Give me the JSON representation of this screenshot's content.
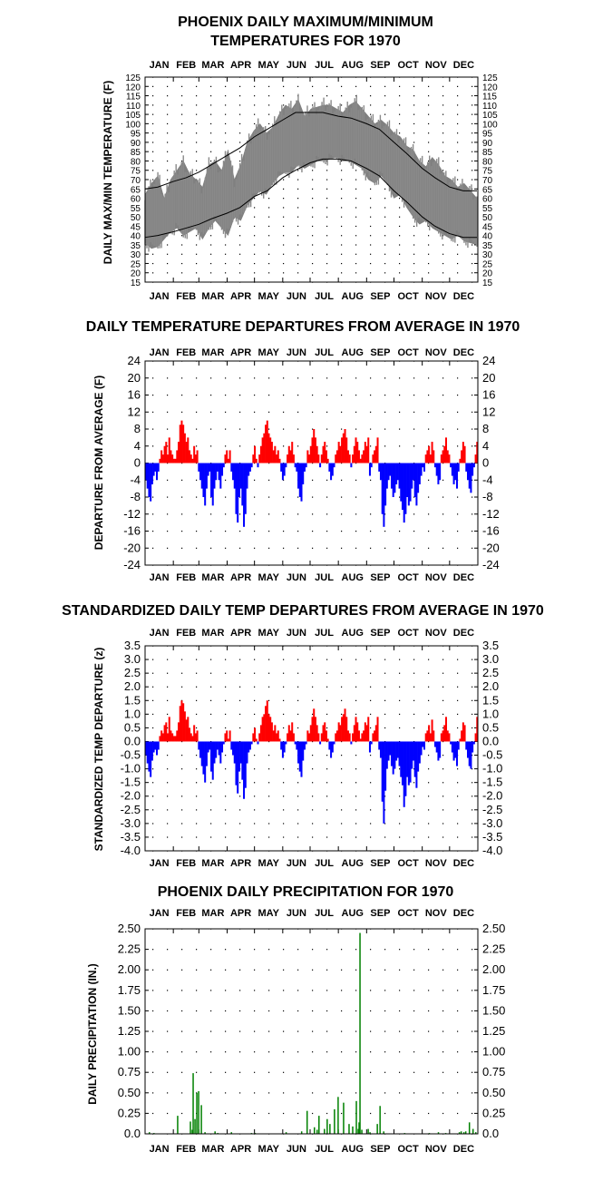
{
  "chart_data": [
    {
      "type": "area",
      "title": [
        "PHOENIX DAILY MAXIMUM/MINIMUM",
        "TEMPERATURES FOR 1970"
      ],
      "ylabel": "DAILY MAX/MIN TEMPERATURE (F)",
      "ylim": [
        15,
        125
      ],
      "yticks": [
        15,
        20,
        25,
        30,
        35,
        40,
        45,
        50,
        55,
        60,
        65,
        70,
        75,
        80,
        85,
        90,
        95,
        100,
        105,
        110,
        115,
        120,
        125
      ],
      "months": [
        "JAN",
        "FEB",
        "MAR",
        "APR",
        "MAY",
        "JUN",
        "JUL",
        "AUG",
        "SEP",
        "OCT",
        "NOV",
        "DEC"
      ],
      "grid": true,
      "series": [
        {
          "name": "",
          "kind": "normal-max",
          "color": "#000000",
          "x": [
            1,
            15,
            32,
            46,
            60,
            74,
            91,
            105,
            121,
            135,
            152,
            166,
            182,
            196,
            213,
            227,
            244,
            258,
            274,
            288,
            305,
            319,
            335,
            350,
            365
          ],
          "values": [
            65,
            66,
            69,
            71,
            74,
            78,
            83,
            87,
            93,
            97,
            102,
            106,
            106,
            106,
            104,
            103,
            100,
            97,
            90,
            84,
            76,
            71,
            66,
            64,
            64
          ]
        },
        {
          "name": "",
          "kind": "normal-min",
          "color": "#000000",
          "x": [
            1,
            15,
            32,
            46,
            60,
            74,
            91,
            105,
            121,
            135,
            152,
            166,
            182,
            196,
            213,
            227,
            244,
            258,
            274,
            288,
            305,
            319,
            335,
            350,
            365
          ],
          "values": [
            39,
            40,
            42,
            44,
            46,
            49,
            52,
            55,
            61,
            64,
            71,
            75,
            79,
            81,
            81,
            80,
            76,
            72,
            64,
            58,
            50,
            45,
            41,
            39,
            39
          ]
        },
        {
          "name": "",
          "kind": "daily-max",
          "color": "#808080",
          "x": [
            1,
            8,
            15,
            22,
            29,
            36,
            43,
            50,
            57,
            64,
            71,
            78,
            85,
            92,
            99,
            106,
            113,
            120,
            127,
            134,
            141,
            148,
            155,
            162,
            169,
            176,
            183,
            190,
            197,
            204,
            211,
            218,
            225,
            232,
            239,
            246,
            253,
            260,
            267,
            274,
            281,
            288,
            295,
            302,
            309,
            316,
            323,
            330,
            337,
            344,
            351,
            358,
            365
          ],
          "values": [
            62,
            68,
            72,
            60,
            70,
            75,
            80,
            73,
            70,
            66,
            78,
            80,
            75,
            86,
            70,
            78,
            90,
            96,
            100,
            95,
            98,
            105,
            110,
            108,
            113,
            104,
            108,
            109,
            110,
            110,
            108,
            106,
            110,
            112,
            108,
            104,
            100,
            102,
            99,
            95,
            93,
            88,
            86,
            80,
            77,
            82,
            78,
            72,
            70,
            66,
            68,
            64,
            60
          ]
        },
        {
          "name": "",
          "kind": "daily-min",
          "color": "#808080",
          "x": [
            1,
            8,
            15,
            22,
            29,
            36,
            43,
            50,
            57,
            64,
            71,
            78,
            85,
            92,
            99,
            106,
            113,
            120,
            127,
            134,
            141,
            148,
            155,
            162,
            169,
            176,
            183,
            190,
            197,
            204,
            211,
            218,
            225,
            232,
            239,
            246,
            253,
            260,
            267,
            274,
            281,
            288,
            295,
            302,
            309,
            316,
            323,
            330,
            337,
            344,
            351,
            358,
            365
          ],
          "values": [
            36,
            33,
            34,
            38,
            42,
            44,
            40,
            42,
            44,
            38,
            44,
            48,
            44,
            40,
            50,
            48,
            56,
            60,
            64,
            62,
            68,
            72,
            74,
            74,
            78,
            76,
            78,
            80,
            80,
            81,
            82,
            80,
            80,
            78,
            76,
            70,
            68,
            72,
            68,
            60,
            62,
            55,
            50,
            46,
            48,
            44,
            42,
            40,
            38,
            40,
            37,
            36,
            35
          ]
        }
      ]
    },
    {
      "type": "bar",
      "title": "DAILY TEMPERATURE DEPARTURES FROM AVERAGE IN 1970",
      "ylabel": "DEPARTURE FROM AVERAGE (F)",
      "ylim": [
        -24,
        24
      ],
      "yticks": [
        24,
        20,
        16,
        12,
        8,
        4,
        0,
        -4,
        -8,
        -12,
        -16,
        -20,
        -24
      ],
      "months": [
        "JAN",
        "FEB",
        "MAR",
        "APR",
        "MAY",
        "JUN",
        "JUL",
        "AUG",
        "SEP",
        "OCT",
        "NOV",
        "DEC"
      ],
      "grid": true,
      "positive_color": "#ff0000",
      "negative_color": "#0000ff",
      "series": [
        {
          "name": "",
          "values": [
            -4,
            -6,
            -8,
            -9,
            -5,
            -3,
            -2,
            -4,
            -2,
            1,
            3,
            2,
            4,
            5,
            2,
            6,
            3,
            2,
            1,
            1,
            3,
            5,
            9,
            10,
            9,
            7,
            5,
            6,
            3,
            2,
            1,
            4,
            2,
            3,
            -2,
            -4,
            -6,
            -8,
            -10,
            -6,
            -3,
            -2,
            -8,
            -10,
            -6,
            -4,
            -2,
            -4,
            -6,
            -3,
            -1,
            2,
            3,
            1,
            3,
            -2,
            -4,
            -6,
            -12,
            -14,
            -8,
            -6,
            -10,
            -15,
            -12,
            -6,
            -3,
            -2,
            -1,
            2,
            4,
            1,
            -1,
            2,
            4,
            6,
            7,
            9,
            10,
            7,
            6,
            5,
            3,
            4,
            2,
            3,
            1,
            -2,
            -4,
            -3,
            -1,
            2,
            4,
            3,
            5,
            2,
            -1,
            -2,
            -6,
            -8,
            -9,
            -5,
            -2,
            -1,
            3,
            2,
            4,
            6,
            8,
            6,
            4,
            2,
            -1,
            2,
            4,
            5,
            3,
            1,
            -2,
            -4,
            -3,
            -1,
            2,
            3,
            5,
            4,
            6,
            7,
            8,
            6,
            3,
            2,
            -1,
            2,
            4,
            6,
            5,
            3,
            1,
            2,
            3,
            5,
            4,
            6,
            -3,
            -1,
            2,
            3,
            4,
            6,
            -2,
            -4,
            -12,
            -15,
            -10,
            -6,
            -4,
            -3,
            -6,
            -8,
            -7,
            -5,
            -4,
            -6,
            -9,
            -11,
            -14,
            -12,
            -8,
            -10,
            -9,
            -6,
            -4,
            -8,
            -10,
            -7,
            -5,
            -3,
            -1,
            -2,
            2,
            3,
            4,
            2,
            5,
            3,
            -1,
            -3,
            -5,
            -4,
            2,
            3,
            4,
            6,
            3,
            2,
            -1,
            -3,
            -5,
            -4,
            -6,
            -2,
            1,
            3,
            5,
            4,
            -2,
            -4,
            -6,
            -7,
            -3,
            -1,
            2,
            5
          ]
        }
      ]
    },
    {
      "type": "bar",
      "title": "STANDARDIZED DAILY TEMP DEPARTURES FROM AVERAGE IN 1970",
      "ylabel": "STANDARDIZED TEMP DEPARTURE (z)",
      "ylim": [
        -4.0,
        3.5
      ],
      "yticks": [
        "3.5",
        "3.0",
        "2.5",
        "2.0",
        "1.5",
        "1.0",
        "0.5",
        "0.0",
        "-0.5",
        "-1.0",
        "-1.5",
        "-2.0",
        "-2.5",
        "-3.0",
        "-3.5",
        "-4.0"
      ],
      "months": [
        "JAN",
        "FEB",
        "MAR",
        "APR",
        "MAY",
        "JUN",
        "JUL",
        "AUG",
        "SEP",
        "OCT",
        "NOV",
        "DEC"
      ],
      "grid": true,
      "positive_color": "#ff0000",
      "negative_color": "#0000ff",
      "series": [
        {
          "name": "",
          "values": [
            -0.5,
            -0.8,
            -1.1,
            -1.3,
            -0.7,
            -0.4,
            -0.3,
            -0.5,
            -0.3,
            0.2,
            0.4,
            0.3,
            0.6,
            0.7,
            0.3,
            0.9,
            0.4,
            0.3,
            0.2,
            0.2,
            0.4,
            0.7,
            1.3,
            1.5,
            1.4,
            1.1,
            0.8,
            0.9,
            0.5,
            0.3,
            0.2,
            0.6,
            0.3,
            0.4,
            -0.3,
            -0.6,
            -0.9,
            -1.2,
            -1.5,
            -0.9,
            -0.4,
            -0.3,
            -1.1,
            -1.4,
            -0.8,
            -0.6,
            -0.3,
            -0.5,
            -0.8,
            -0.4,
            -0.1,
            0.3,
            0.4,
            0.1,
            0.4,
            -0.3,
            -0.5,
            -0.8,
            -1.6,
            -1.9,
            -1.1,
            -0.8,
            -1.4,
            -2.1,
            -1.7,
            -0.8,
            -0.4,
            -0.3,
            -0.1,
            0.3,
            0.5,
            0.1,
            -0.1,
            0.3,
            0.6,
            0.9,
            1.0,
            1.3,
            1.5,
            1.0,
            0.9,
            0.7,
            0.4,
            0.6,
            0.3,
            0.4,
            0.1,
            -0.3,
            -0.6,
            -0.4,
            -0.1,
            0.3,
            0.6,
            0.4,
            0.7,
            0.3,
            -0.1,
            -0.3,
            -0.8,
            -1.1,
            -1.3,
            -0.7,
            -0.3,
            -0.1,
            0.4,
            0.3,
            0.6,
            0.9,
            1.2,
            0.9,
            0.6,
            0.3,
            -0.1,
            0.3,
            0.6,
            0.7,
            0.4,
            0.1,
            -0.3,
            -0.6,
            -0.4,
            -0.1,
            0.3,
            0.4,
            0.7,
            0.6,
            0.9,
            1.0,
            1.2,
            0.9,
            0.4,
            0.3,
            -0.1,
            0.3,
            0.6,
            0.9,
            0.7,
            0.4,
            0.1,
            0.3,
            0.4,
            0.7,
            0.6,
            0.9,
            -0.4,
            -0.1,
            0.3,
            0.4,
            0.6,
            0.9,
            -0.3,
            -0.6,
            -2.2,
            -3.0,
            -1.8,
            -1.0,
            -0.7,
            -0.5,
            -0.9,
            -1.2,
            -1.0,
            -0.7,
            -0.6,
            -0.9,
            -1.3,
            -1.6,
            -2.4,
            -2.0,
            -1.3,
            -1.6,
            -1.5,
            -1.0,
            -0.7,
            -1.3,
            -1.7,
            -1.1,
            -0.8,
            -0.5,
            -0.2,
            -0.3,
            0.3,
            0.4,
            0.6,
            0.3,
            0.8,
            0.4,
            -0.2,
            -0.4,
            -0.7,
            -0.6,
            0.3,
            0.4,
            0.6,
            0.9,
            0.4,
            0.3,
            -0.1,
            -0.4,
            -0.7,
            -0.6,
            -0.9,
            -0.3,
            0.1,
            0.4,
            0.7,
            0.6,
            -0.3,
            -0.6,
            -0.9,
            -1.0,
            -0.4,
            -0.1,
            0.3,
            0.9
          ]
        }
      ]
    },
    {
      "type": "bar",
      "title": "PHOENIX DAILY PRECIPITATION FOR 1970",
      "ylabel": "DAILY PRECIPITATION (IN.)",
      "ylim": [
        0,
        2.5
      ],
      "yticks": [
        "2.50",
        "2.25",
        "2.00",
        "1.75",
        "1.50",
        "1.25",
        "1.00",
        "0.75",
        "0.50",
        "0.25",
        "0.0"
      ],
      "months": [
        "JAN",
        "FEB",
        "MAR",
        "APR",
        "MAY",
        "JUN",
        "JUL",
        "AUG",
        "SEP",
        "OCT",
        "NOV",
        "DEC"
      ],
      "grid": true,
      "color": "#008000",
      "series": [
        {
          "name": "",
          "x": [
            5,
            10,
            36,
            50,
            52,
            53,
            55,
            57,
            59,
            62,
            66,
            77,
            80,
            95,
            117,
            121,
            155,
            172,
            178,
            186,
            189,
            191,
            197,
            200,
            203,
            208,
            212,
            218,
            224,
            228,
            232,
            234,
            235,
            236,
            238,
            245,
            247,
            255,
            258,
            262,
            285,
            312,
            322,
            330,
            345,
            347,
            350,
            352,
            356,
            360,
            363
          ],
          "values": [
            0.02,
            0.01,
            0.22,
            0.15,
            0.05,
            0.74,
            0.18,
            0.5,
            0.52,
            0.35,
            0.02,
            0.03,
            0.01,
            0.02,
            0.01,
            0.01,
            0.02,
            0.03,
            0.28,
            0.08,
            0.05,
            0.22,
            0.06,
            0.18,
            0.12,
            0.3,
            0.45,
            0.38,
            0.12,
            0.09,
            0.4,
            0.06,
            0.14,
            2.45,
            0.05,
            0.06,
            0.02,
            0.12,
            0.34,
            0.03,
            0.01,
            0.01,
            0.02,
            0.01,
            0.02,
            0.03,
            0.02,
            0.03,
            0.14,
            0.06,
            0.02
          ]
        }
      ]
    }
  ]
}
